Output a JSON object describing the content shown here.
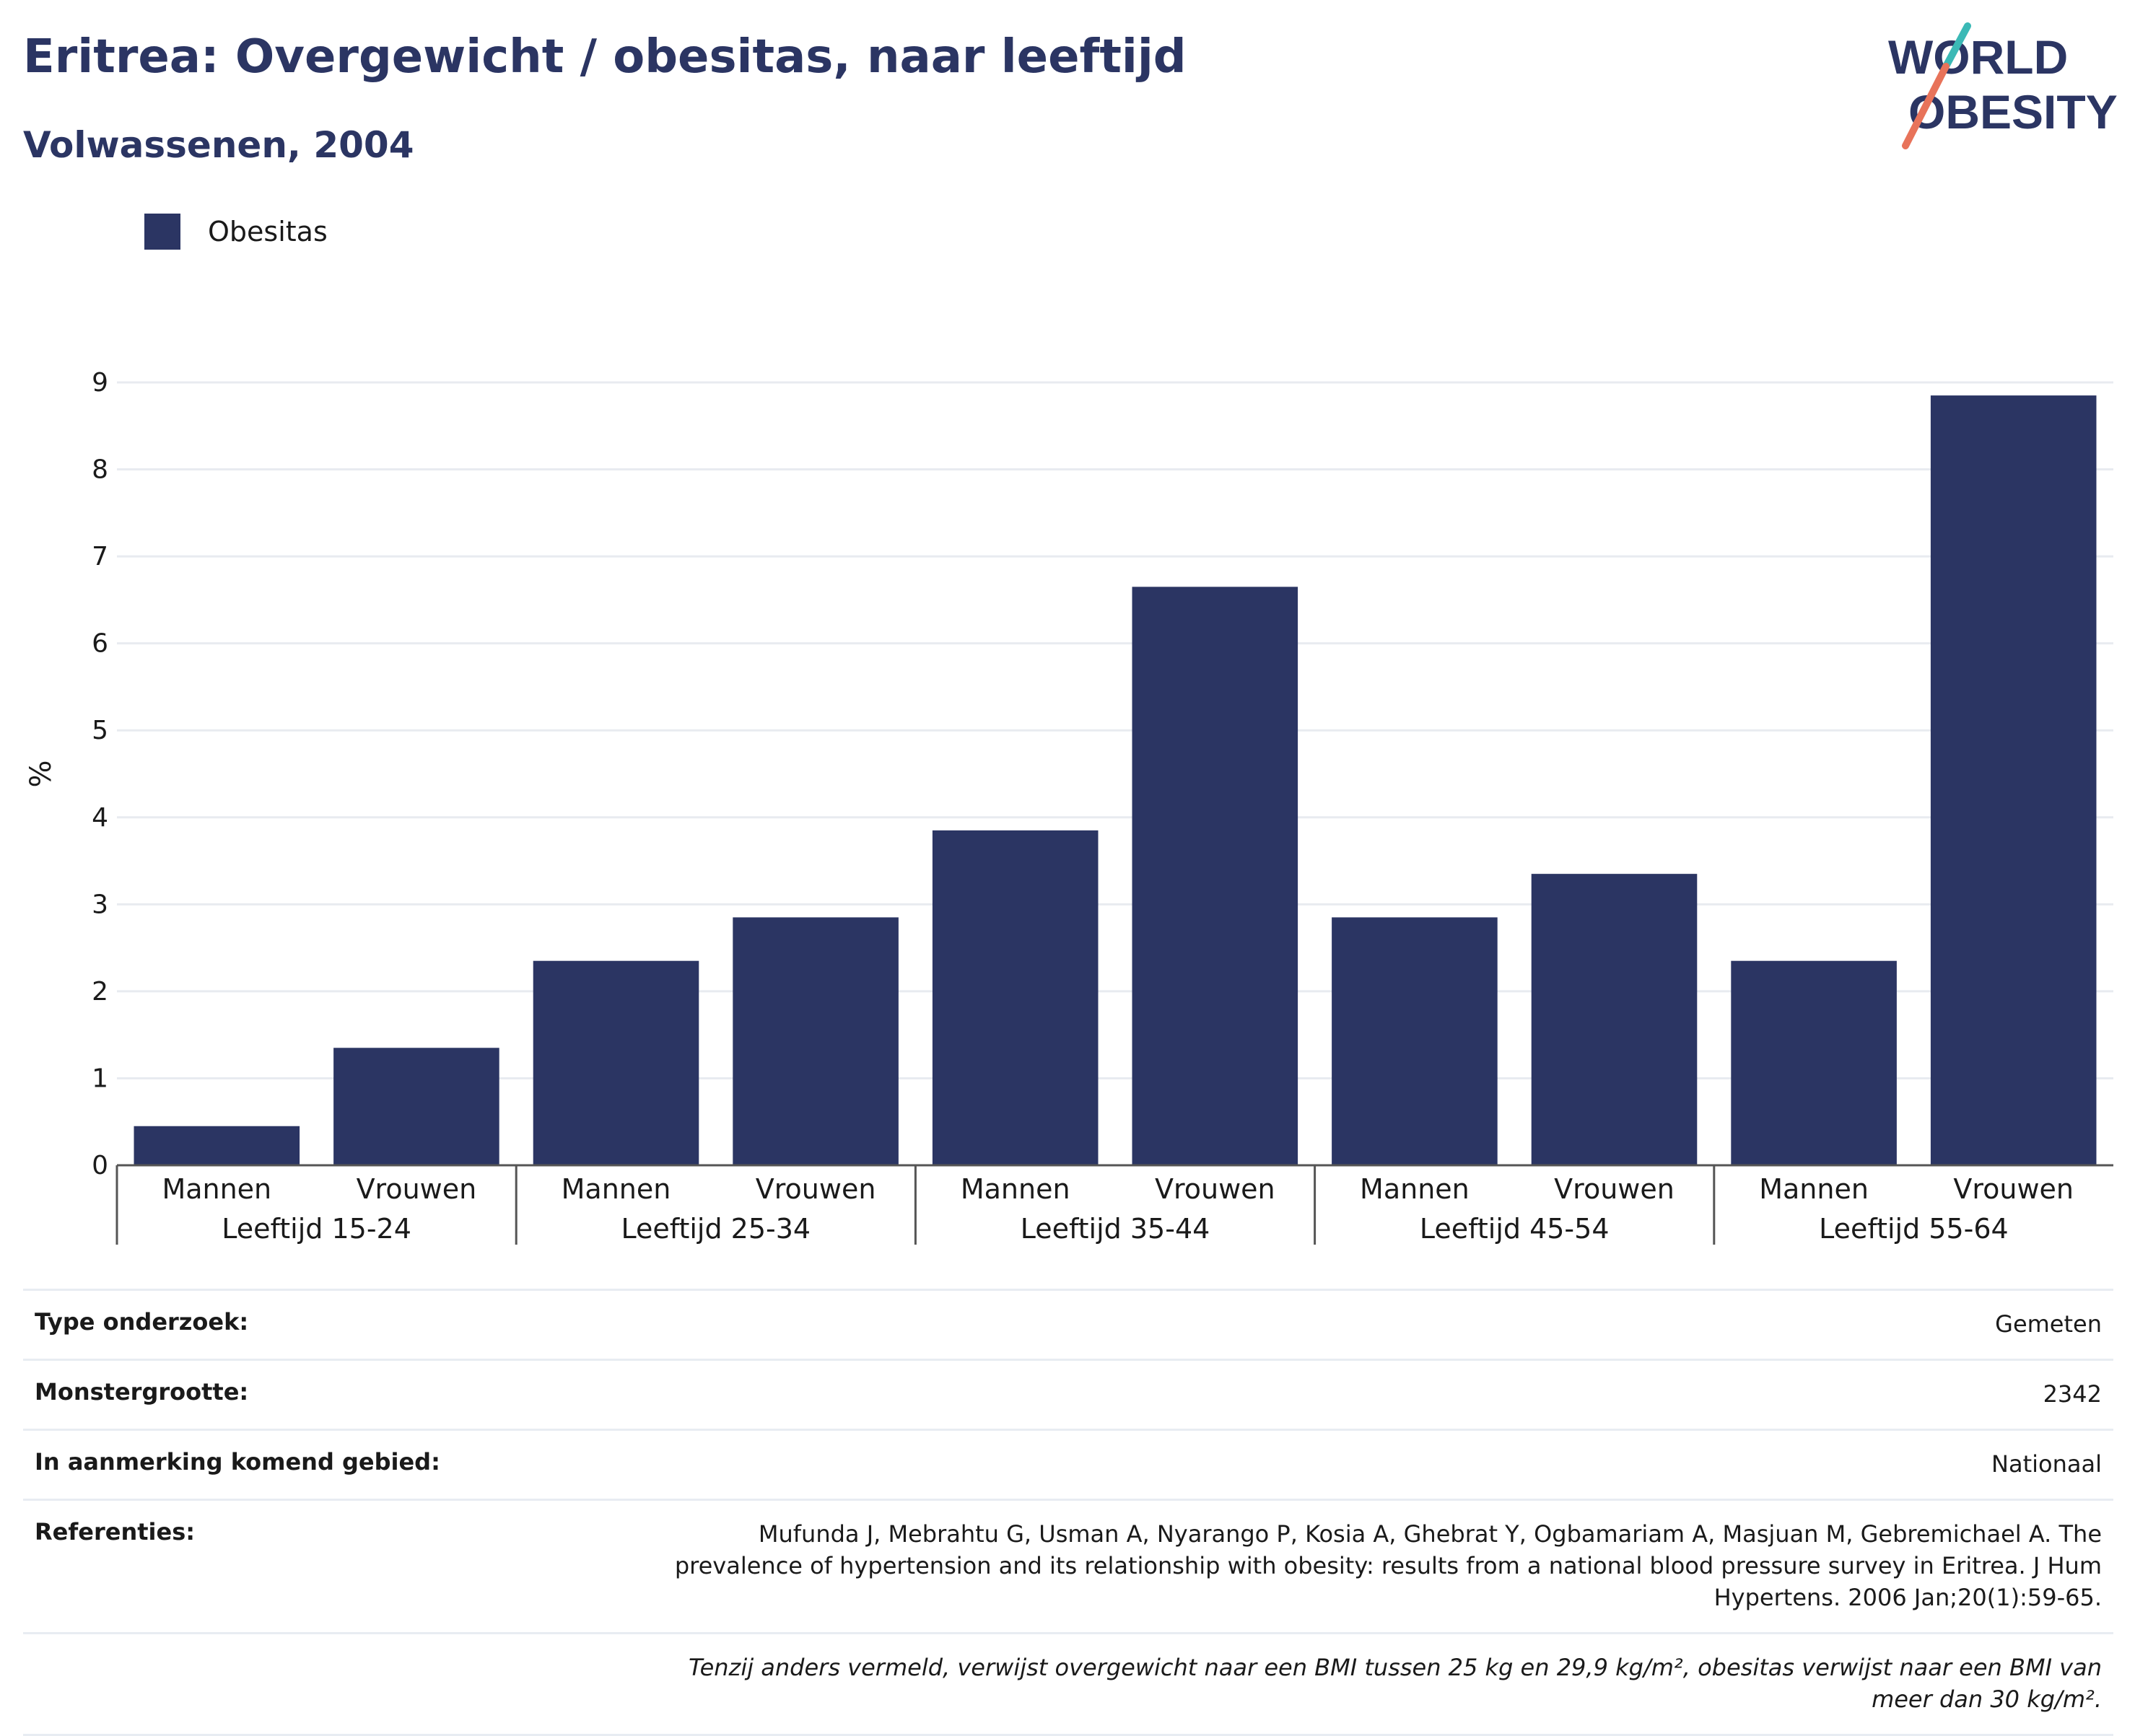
{
  "header": {
    "title": "Eritrea: Overgewicht / obesitas, naar leeftijd",
    "subtitle": "Volwassenen, 2004"
  },
  "logo": {
    "line1": "WORLD",
    "line2": "OBESITY",
    "teal": "#3bb9b6",
    "coral": "#e8735a",
    "navy": "#2b3563"
  },
  "legend": {
    "label": "Obesitas",
    "color": "#2b3563"
  },
  "chart_data": {
    "type": "bar",
    "ylabel": "%",
    "ylim": [
      0,
      9
    ],
    "yticks": [
      "0",
      "1",
      "2",
      "3",
      "4",
      "5",
      "6",
      "7",
      "8",
      "9"
    ],
    "groups": [
      {
        "label": "Leeftijd 15-24",
        "categories": [
          "Mannen",
          "Vrouwen"
        ],
        "values": [
          0.45,
          1.35
        ]
      },
      {
        "label": "Leeftijd 25-34",
        "categories": [
          "Mannen",
          "Vrouwen"
        ],
        "values": [
          2.35,
          2.85
        ]
      },
      {
        "label": "Leeftijd 35-44",
        "categories": [
          "Mannen",
          "Vrouwen"
        ],
        "values": [
          3.85,
          6.65
        ]
      },
      {
        "label": "Leeftijd 45-54",
        "categories": [
          "Mannen",
          "Vrouwen"
        ],
        "values": [
          2.85,
          3.35
        ]
      },
      {
        "label": "Leeftijd 55-64",
        "categories": [
          "Mannen",
          "Vrouwen"
        ],
        "values": [
          2.35,
          8.85
        ]
      }
    ],
    "series": [
      {
        "name": "Obesitas",
        "color": "#2b3563"
      }
    ],
    "grid": true,
    "legend_position": "top-left"
  },
  "info": {
    "type_label": "Type onderzoek:",
    "type_value": "Gemeten",
    "sample_label": "Monstergrootte:",
    "sample_value": "2342",
    "area_label": "In aanmerking komend gebied:",
    "area_value": "Nationaal",
    "ref_label": "Referenties:",
    "ref_value": "Mufunda J, Mebrahtu G, Usman A, Nyarango P, Kosia A, Ghebrat Y, Ogbamariam A, Masjuan M, Gebremichael A. The prevalence of hypertension and its relationship with obesity: results from a national blood pressure survey in Eritrea. J Hum Hypertens. 2006 Jan;20(1):59-65.",
    "note": "Tenzij anders vermeld, verwijst overgewicht naar een BMI tussen 25 kg en 29,9 kg/m², obesitas verwijst naar een BMI van meer dan 30 kg/m²."
  }
}
